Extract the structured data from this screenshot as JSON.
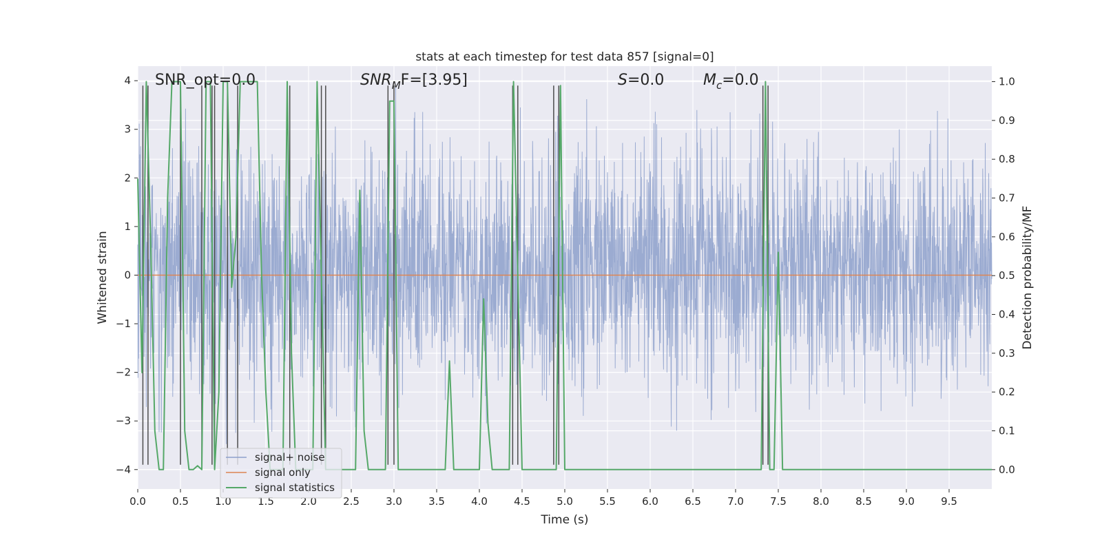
{
  "chart_data": {
    "type": "line",
    "title": "stats at each timestep for test data 857 [signal=0]",
    "xlabel": "Time (s)",
    "ylabel_left": "Whitened strain",
    "ylabel_right": "Detection probability/MF",
    "xlim": [
      0.0,
      10.0
    ],
    "ylim_left": [
      -4.4,
      4.3
    ],
    "ylim_right": [
      -0.05,
      1.04
    ],
    "x_ticks": [
      "0.0",
      "0.5",
      "1.0",
      "1.5",
      "2.0",
      "2.5",
      "3.0",
      "3.5",
      "4.0",
      "4.5",
      "5.0",
      "5.5",
      "6.0",
      "6.5",
      "7.0",
      "7.5",
      "8.0",
      "8.5",
      "9.0",
      "9.5"
    ],
    "y_ticks_left": [
      "4",
      "3",
      "2",
      "1",
      "0",
      "−1",
      "−2",
      "−3",
      "−4"
    ],
    "y_ticks_right": [
      "1.0",
      "0.9",
      "0.8",
      "0.7",
      "0.6",
      "0.5",
      "0.4",
      "0.3",
      "0.2",
      "0.1",
      "0.0"
    ],
    "annotations": {
      "snr_opt": "SNR_opt=0.0",
      "snr_mf_base": "SNR",
      "snr_mf_sub": "M",
      "snr_mf_rest": "F=[3.95]",
      "s_var": "S",
      "s_rest": "=0.0",
      "mc_var": "M",
      "mc_sub": "c",
      "mc_rest": "=0.0"
    },
    "legend": {
      "position": "lower-left",
      "entries": [
        "signal+ noise",
        "signal only",
        "signal statistics"
      ]
    },
    "colors": {
      "noise": "#8da0cb",
      "signal_only": "#dd8452",
      "statistics": "#55a868",
      "mf_lines": "#4c4c4c",
      "plot_bg": "#eaeaf2",
      "grid": "#ffffff"
    },
    "series": [
      {
        "name": "signal statistics",
        "axis": "right",
        "x": [
          0.0,
          0.05,
          0.1,
          0.15,
          0.2,
          0.25,
          0.3,
          0.35,
          0.4,
          0.45,
          0.5,
          0.55,
          0.6,
          0.65,
          0.7,
          0.75,
          0.8,
          0.85,
          0.9,
          0.95,
          1.0,
          1.05,
          1.1,
          1.15,
          1.2,
          1.25,
          1.3,
          1.35,
          1.4,
          1.45,
          1.5,
          1.55,
          1.6,
          1.65,
          1.7,
          1.75,
          1.8,
          1.85,
          1.9,
          1.95,
          2.0,
          2.05,
          2.1,
          2.15,
          2.2,
          2.25,
          2.3,
          2.35,
          2.4,
          2.45,
          2.5,
          2.55,
          2.6,
          2.65,
          2.7,
          2.75,
          2.8,
          2.85,
          2.9,
          2.95,
          3.0,
          3.05,
          3.1,
          3.15,
          3.2,
          3.3,
          3.4,
          3.5,
          3.6,
          3.65,
          3.7,
          3.75,
          3.8,
          3.85,
          3.9,
          3.95,
          4.0,
          4.05,
          4.1,
          4.15,
          4.2,
          4.25,
          4.3,
          4.35,
          4.4,
          4.45,
          4.5,
          4.55,
          4.6,
          4.7,
          4.8,
          4.85,
          4.9,
          4.95,
          5.0,
          5.5,
          6.0,
          6.5,
          7.0,
          7.3,
          7.35,
          7.4,
          7.45,
          7.5,
          7.55,
          7.6,
          7.65,
          8.0,
          9.0,
          10.0
        ],
        "values": [
          0.75,
          0.25,
          1.0,
          0.6,
          0.1,
          0.0,
          0.0,
          0.7,
          1.0,
          1.0,
          1.0,
          0.1,
          0.0,
          0.0,
          0.01,
          0.0,
          1.0,
          1.0,
          0.0,
          0.2,
          1.0,
          1.0,
          0.47,
          0.6,
          1.0,
          1.0,
          1.0,
          1.0,
          1.0,
          0.5,
          0.2,
          0.0,
          0.0,
          0.0,
          0.0,
          1.0,
          0.3,
          0.0,
          0.0,
          0.0,
          0.0,
          0.0,
          1.0,
          0.5,
          0.0,
          0.0,
          0.0,
          0.0,
          0.0,
          0.0,
          0.0,
          0.0,
          0.72,
          0.1,
          0.0,
          0.0,
          0.0,
          0.0,
          0.0,
          0.95,
          0.95,
          0.0,
          0.0,
          0.0,
          0.0,
          0.0,
          0.0,
          0.0,
          0.0,
          0.28,
          0.0,
          0.0,
          0.0,
          0.0,
          0.0,
          0.0,
          0.0,
          0.44,
          0.12,
          0.0,
          0.0,
          0.0,
          0.0,
          0.0,
          1.0,
          0.5,
          0.0,
          0.0,
          0.0,
          0.0,
          0.0,
          0.0,
          0.0,
          0.99,
          0.0,
          0.0,
          0.0,
          0.0,
          0.0,
          0.0,
          1.0,
          0.0,
          0.0,
          0.56,
          0.0,
          0.0,
          0.0,
          0.0,
          0.0,
          0.0
        ]
      },
      {
        "name": "signal only",
        "axis": "left",
        "x": [
          0.0,
          10.0
        ],
        "values": [
          0.0,
          0.0
        ]
      },
      {
        "name": "MF trigger lines",
        "axis": "left",
        "x": [
          0.06,
          0.12,
          0.5,
          0.75,
          0.87,
          0.9,
          1.05,
          1.17,
          1.78,
          2.15,
          2.2,
          2.93,
          3.0,
          4.39,
          4.45,
          4.87,
          4.93,
          7.32,
          7.38
        ],
        "values": [
          3.9,
          3.9,
          3.9,
          3.9,
          3.9,
          3.9,
          3.9,
          3.9,
          3.9,
          3.9,
          3.9,
          3.9,
          3.9,
          3.9,
          3.9,
          3.9,
          3.9,
          3.9,
          3.9
        ]
      }
    ],
    "noise_description": {
      "name": "signal+ noise",
      "axis": "left",
      "typical_range": [
        -2.0,
        2.3
      ],
      "extreme_range": [
        -3.9,
        3.9
      ]
    }
  }
}
